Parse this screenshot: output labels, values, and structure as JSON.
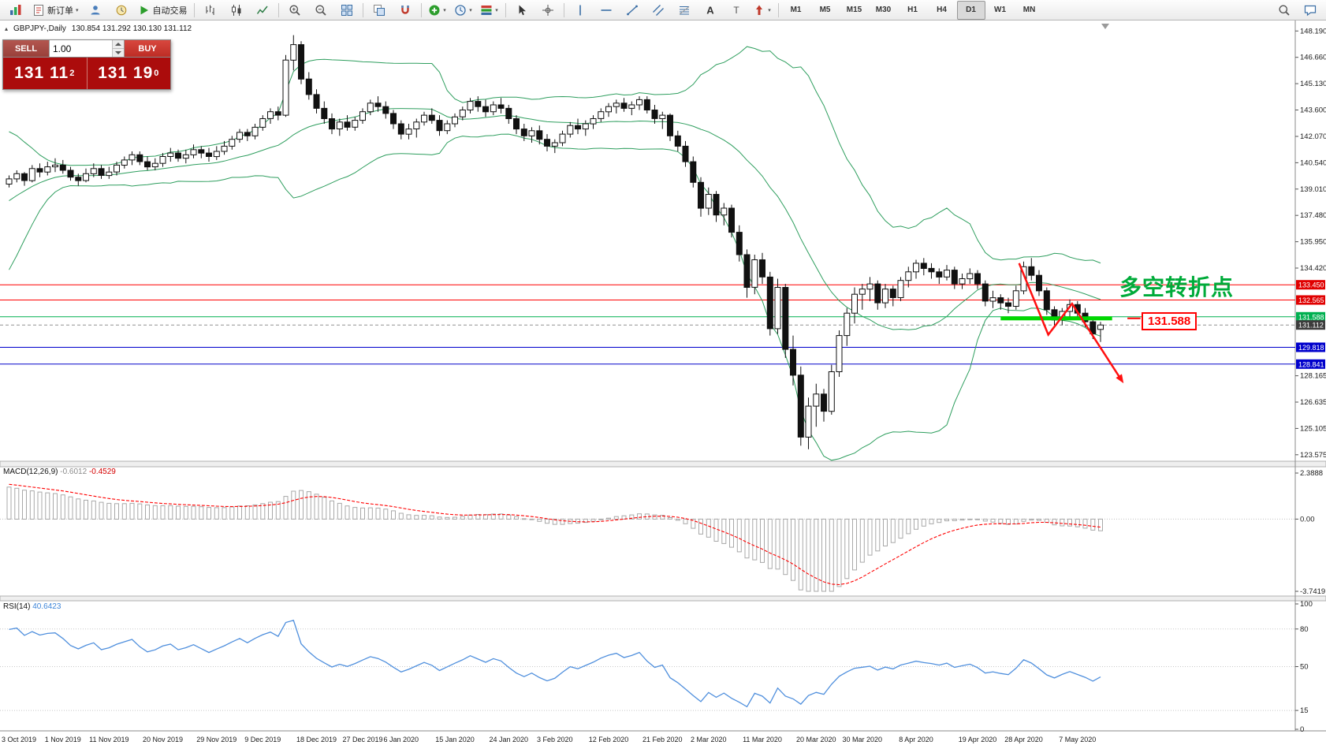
{
  "icons": {
    "caret": "▾",
    "collapse_arrow": "▴"
  },
  "toolbar": {
    "new_order_label": "新订单",
    "autotrade_label": "自动交易",
    "left_groups": [
      [
        {
          "name": "app",
          "icon": "app-icon"
        },
        {
          "name": "new-order",
          "icon": "new-order-icon",
          "label_key": "new_order_label",
          "caret": true
        },
        {
          "name": "profiles",
          "icon": "profiles-icon"
        },
        {
          "name": "market-watch",
          "icon": "market-watch-icon"
        },
        {
          "name": "autotrade",
          "icon": "autotrade-icon",
          "label_key": "autotrade_label"
        }
      ],
      [
        {
          "name": "chart-bars",
          "icon": "chart-bars-icon"
        },
        {
          "name": "chart-candles",
          "icon": "chart-candles-icon"
        },
        {
          "name": "chart-line",
          "icon": "chart-line-icon"
        }
      ],
      [
        {
          "name": "zoom-in",
          "icon": "zoom-in-icon"
        },
        {
          "name": "zoom-out",
          "icon": "zoom-out-icon"
        },
        {
          "name": "tile-windows",
          "icon": "tile-windows-icon"
        }
      ],
      [
        {
          "name": "arrange-windows",
          "icon": "arrange-icon"
        },
        {
          "name": "snap",
          "icon": "snap-icon"
        }
      ],
      [
        {
          "name": "indicators",
          "icon": "indicators-icon",
          "caret": true
        },
        {
          "name": "periods",
          "icon": "periods-icon",
          "caret": true
        },
        {
          "name": "templates",
          "icon": "templates-icon",
          "caret": true
        }
      ],
      [
        {
          "name": "cursor",
          "icon": "cursor-icon"
        },
        {
          "name": "crosshair",
          "icon": "crosshair-icon"
        }
      ],
      [
        {
          "name": "vline",
          "icon": "vline-icon"
        },
        {
          "name": "hline",
          "icon": "hline-icon"
        },
        {
          "name": "trendline",
          "icon": "trendline-icon"
        },
        {
          "name": "channel",
          "icon": "channel-icon"
        },
        {
          "name": "fibonacci",
          "icon": "fibo-icon"
        },
        {
          "name": "text",
          "icon": "text-icon"
        },
        {
          "name": "text-label",
          "icon": "label-icon"
        },
        {
          "name": "arrows",
          "icon": "arrows-icon",
          "caret": true
        }
      ]
    ],
    "timeframes": [
      "M1",
      "M5",
      "M15",
      "M30",
      "H1",
      "H4",
      "D1",
      "W1",
      "MN"
    ],
    "active_timeframe": "D1",
    "right_icons": [
      {
        "name": "search",
        "icon": "search-icon"
      },
      {
        "name": "chat",
        "icon": "chat-icon"
      }
    ]
  },
  "symbol_info": {
    "symbol": "GBPJPY-,Daily",
    "values": "130.854 131.292 130.130 131.112"
  },
  "trade_panel": {
    "sell_label": "SELL",
    "buy_label": "BUY",
    "volume": "1.00",
    "sell_price": "131 11",
    "sell_sup": "2",
    "buy_price": "131 19",
    "buy_sup": "0"
  },
  "indicator_labels": {
    "macd_name": "MACD(12,26,9)",
    "macd_main": "-0.6012",
    "macd_signal": "-0.4529",
    "rsi_name": "RSI(14)",
    "rsi_value": "40.6423"
  },
  "annotations": {
    "turning_point": "多空转折点",
    "support_label": "131.588"
  },
  "chart_data": {
    "type": "candlestick",
    "title": "GBPJPY-,Daily",
    "price_range": [
      123.2,
      148.8
    ],
    "price_axis_ticks": [
      "148.190",
      "146.660",
      "145.130",
      "143.600",
      "142.070",
      "140.540",
      "139.010",
      "137.480",
      "135.950",
      "134.420",
      "128.165",
      "126.635",
      "125.105",
      "123.575"
    ],
    "dates": [
      [
        "3 Oct 2019",
        0
      ],
      [
        "1 Nov 2019",
        7
      ],
      [
        "11 Nov 2019",
        13
      ],
      [
        "20 Nov 2019",
        20
      ],
      [
        "29 Nov 2019",
        27
      ],
      [
        "9 Dec 2019",
        33
      ],
      [
        "18 Dec 2019",
        40
      ],
      [
        "27 Dec 2019",
        46
      ],
      [
        "6 Jan 2020",
        51
      ],
      [
        "15 Jan 2020",
        58
      ],
      [
        "24 Jan 2020",
        65
      ],
      [
        "3 Feb 2020",
        71
      ],
      [
        "12 Feb 2020",
        78
      ],
      [
        "21 Feb 2020",
        85
      ],
      [
        "2 Mar 2020",
        91
      ],
      [
        "11 Mar 2020",
        98
      ],
      [
        "20 Mar 2020",
        105
      ],
      [
        "30 Mar 2020",
        111
      ],
      [
        "8 Apr 2020",
        118
      ],
      [
        "19 Apr 2020",
        126
      ],
      [
        "28 Apr 2020",
        132
      ],
      [
        "7 May 2020",
        139
      ]
    ],
    "warmup_closes": [
      131.5,
      131.8,
      132.2,
      132.0,
      132.5,
      133.2,
      134.0,
      133.8,
      134.2,
      134.9,
      135.8,
      136.8,
      137.7,
      138.5,
      139.1,
      139.6,
      139.9,
      140.1,
      139.7,
      139.4,
      139.6,
      139.4,
      139.7,
      139.5,
      139.8,
      139.5
    ],
    "candles": [
      [
        139.3,
        139.8,
        139.1,
        139.6
      ],
      [
        139.6,
        140.1,
        139.4,
        139.9
      ],
      [
        139.9,
        140.0,
        139.2,
        139.5
      ],
      [
        139.5,
        140.4,
        139.4,
        140.2
      ],
      [
        140.2,
        140.5,
        139.7,
        140.0
      ],
      [
        140.0,
        140.6,
        139.8,
        140.3
      ],
      [
        140.3,
        140.8,
        140.0,
        140.4
      ],
      [
        140.4,
        140.7,
        139.9,
        140.1
      ],
      [
        140.1,
        140.3,
        139.5,
        139.7
      ],
      [
        139.7,
        139.9,
        139.2,
        139.5
      ],
      [
        139.5,
        140.2,
        139.4,
        139.9
      ],
      [
        139.9,
        140.5,
        139.7,
        140.2
      ],
      [
        140.2,
        140.4,
        139.6,
        139.8
      ],
      [
        139.8,
        140.3,
        139.6,
        140.0
      ],
      [
        140.0,
        140.6,
        139.8,
        140.4
      ],
      [
        140.4,
        140.9,
        140.2,
        140.7
      ],
      [
        140.7,
        141.2,
        140.4,
        141.0
      ],
      [
        141.0,
        141.2,
        140.4,
        140.6
      ],
      [
        140.6,
        140.9,
        140.1,
        140.3
      ],
      [
        140.3,
        140.8,
        140.1,
        140.5
      ],
      [
        140.5,
        141.1,
        140.3,
        140.9
      ],
      [
        140.9,
        141.4,
        140.6,
        141.1
      ],
      [
        141.1,
        141.3,
        140.6,
        140.8
      ],
      [
        140.8,
        141.3,
        140.5,
        141.0
      ],
      [
        141.0,
        141.6,
        140.8,
        141.3
      ],
      [
        141.3,
        141.5,
        140.8,
        141.1
      ],
      [
        141.1,
        141.4,
        140.6,
        140.9
      ],
      [
        140.9,
        141.5,
        140.7,
        141.2
      ],
      [
        141.2,
        141.8,
        141.0,
        141.5
      ],
      [
        141.5,
        142.1,
        141.3,
        141.9
      ],
      [
        141.9,
        142.5,
        141.7,
        142.3
      ],
      [
        142.3,
        142.5,
        141.8,
        142.1
      ],
      [
        142.1,
        142.8,
        141.9,
        142.6
      ],
      [
        142.6,
        143.3,
        142.4,
        143.1
      ],
      [
        143.1,
        143.7,
        142.8,
        143.5
      ],
      [
        143.5,
        143.8,
        143.0,
        143.3
      ],
      [
        143.3,
        146.8,
        143.2,
        146.5
      ],
      [
        146.5,
        147.95,
        145.9,
        147.4
      ],
      [
        147.4,
        147.6,
        145.1,
        145.4
      ],
      [
        145.4,
        145.8,
        144.2,
        144.5
      ],
      [
        144.5,
        144.8,
        143.4,
        143.7
      ],
      [
        143.7,
        144.1,
        142.8,
        143.1
      ],
      [
        143.1,
        143.4,
        142.2,
        142.5
      ],
      [
        142.5,
        143.1,
        142.1,
        142.9
      ],
      [
        142.9,
        143.3,
        142.4,
        142.6
      ],
      [
        142.6,
        143.2,
        142.4,
        143.0
      ],
      [
        143.0,
        143.7,
        142.8,
        143.5
      ],
      [
        143.5,
        144.2,
        143.3,
        144.0
      ],
      [
        144.0,
        144.4,
        143.5,
        143.8
      ],
      [
        143.8,
        144.1,
        143.1,
        143.4
      ],
      [
        143.4,
        143.6,
        142.5,
        142.8
      ],
      [
        142.8,
        143.0,
        141.9,
        142.2
      ],
      [
        142.2,
        142.8,
        141.9,
        142.5
      ],
      [
        142.5,
        143.1,
        142.0,
        142.9
      ],
      [
        142.9,
        143.5,
        142.7,
        143.3
      ],
      [
        143.3,
        143.7,
        142.8,
        143.0
      ],
      [
        143.0,
        143.3,
        142.1,
        142.4
      ],
      [
        142.4,
        143.0,
        142.2,
        142.8
      ],
      [
        142.8,
        143.4,
        142.6,
        143.2
      ],
      [
        143.2,
        143.8,
        143.0,
        143.6
      ],
      [
        143.6,
        144.3,
        143.4,
        144.1
      ],
      [
        144.1,
        144.4,
        143.5,
        143.8
      ],
      [
        143.8,
        144.2,
        143.2,
        143.5
      ],
      [
        143.5,
        144.1,
        143.3,
        143.9
      ],
      [
        143.9,
        144.3,
        143.4,
        143.7
      ],
      [
        143.7,
        143.9,
        142.8,
        143.1
      ],
      [
        143.1,
        143.3,
        142.2,
        142.5
      ],
      [
        142.5,
        142.8,
        141.8,
        142.1
      ],
      [
        142.1,
        142.6,
        141.7,
        142.4
      ],
      [
        142.4,
        142.7,
        141.6,
        141.9
      ],
      [
        141.9,
        142.2,
        141.2,
        141.5
      ],
      [
        141.5,
        141.9,
        141.1,
        141.7
      ],
      [
        141.7,
        142.4,
        141.5,
        142.2
      ],
      [
        142.2,
        142.9,
        142.0,
        142.7
      ],
      [
        142.7,
        143.1,
        142.2,
        142.5
      ],
      [
        142.5,
        143.0,
        142.1,
        142.8
      ],
      [
        142.8,
        143.3,
        142.5,
        143.1
      ],
      [
        143.1,
        143.7,
        142.9,
        143.5
      ],
      [
        143.5,
        144.0,
        143.2,
        143.8
      ],
      [
        143.8,
        144.2,
        143.4,
        144.0
      ],
      [
        144.0,
        144.3,
        143.5,
        143.7
      ],
      [
        143.7,
        144.1,
        143.3,
        143.9
      ],
      [
        143.9,
        144.4,
        143.6,
        144.2
      ],
      [
        144.2,
        144.4,
        143.4,
        143.6
      ],
      [
        143.6,
        143.9,
        142.8,
        143.1
      ],
      [
        143.1,
        143.5,
        142.5,
        143.3
      ],
      [
        143.3,
        143.4,
        141.8,
        142.1
      ],
      [
        142.1,
        142.4,
        141.2,
        141.5
      ],
      [
        141.5,
        141.8,
        140.3,
        140.6
      ],
      [
        140.6,
        140.9,
        139.1,
        139.4
      ],
      [
        139.4,
        139.7,
        137.4,
        137.9
      ],
      [
        137.9,
        139.1,
        137.5,
        138.7
      ],
      [
        138.7,
        138.9,
        137.1,
        137.5
      ],
      [
        137.5,
        138.2,
        136.9,
        137.9
      ],
      [
        137.9,
        138.1,
        136.2,
        136.5
      ],
      [
        136.5,
        136.9,
        134.8,
        135.2
      ],
      [
        135.2,
        135.5,
        132.7,
        133.3
      ],
      [
        133.3,
        135.2,
        132.9,
        134.9
      ],
      [
        134.9,
        135.3,
        133.5,
        133.9
      ],
      [
        133.9,
        134.2,
        130.5,
        130.9
      ],
      [
        130.9,
        133.8,
        130.6,
        133.3
      ],
      [
        133.3,
        133.5,
        129.2,
        129.7
      ],
      [
        129.7,
        130.5,
        127.6,
        128.2
      ],
      [
        128.2,
        128.7,
        124.1,
        124.6
      ],
      [
        124.6,
        126.9,
        123.9,
        126.4
      ],
      [
        126.4,
        127.7,
        125.2,
        127.1
      ],
      [
        127.1,
        127.4,
        125.5,
        126.1
      ],
      [
        126.1,
        128.8,
        125.9,
        128.4
      ],
      [
        128.4,
        130.8,
        128.1,
        130.5
      ],
      [
        130.5,
        132.1,
        129.9,
        131.8
      ],
      [
        131.8,
        133.3,
        131.2,
        132.9
      ],
      [
        132.9,
        133.5,
        132.0,
        133.2
      ],
      [
        133.2,
        133.9,
        132.5,
        133.5
      ],
      [
        133.5,
        133.7,
        132.0,
        132.4
      ],
      [
        132.4,
        133.5,
        132.1,
        133.2
      ],
      [
        133.2,
        133.4,
        132.2,
        132.7
      ],
      [
        132.7,
        133.9,
        132.5,
        133.7
      ],
      [
        133.7,
        134.5,
        133.3,
        134.2
      ],
      [
        134.2,
        134.9,
        133.8,
        134.7
      ],
      [
        134.7,
        135.0,
        134.0,
        134.4
      ],
      [
        134.4,
        134.7,
        133.8,
        134.2
      ],
      [
        134.2,
        134.4,
        133.5,
        133.9
      ],
      [
        133.9,
        134.6,
        133.7,
        134.3
      ],
      [
        134.3,
        134.5,
        133.2,
        133.5
      ],
      [
        133.5,
        134.1,
        133.2,
        133.8
      ],
      [
        133.8,
        134.4,
        133.5,
        134.1
      ],
      [
        134.1,
        134.3,
        133.2,
        133.5
      ],
      [
        133.5,
        133.7,
        132.2,
        132.5
      ],
      [
        132.5,
        133.1,
        132.1,
        132.7
      ],
      [
        132.7,
        132.9,
        132.0,
        132.4
      ],
      [
        132.4,
        132.7,
        131.8,
        132.2
      ],
      [
        132.2,
        133.4,
        132.0,
        133.1
      ],
      [
        133.1,
        134.8,
        132.9,
        134.5
      ],
      [
        134.5,
        135.0,
        133.7,
        134.0
      ],
      [
        134.0,
        134.3,
        132.8,
        133.1
      ],
      [
        133.1,
        133.3,
        131.7,
        132.0
      ],
      [
        132.0,
        132.2,
        131.1,
        131.4
      ],
      [
        131.4,
        132.1,
        131.1,
        131.9
      ],
      [
        131.9,
        132.6,
        131.6,
        132.3
      ],
      [
        132.3,
        132.5,
        131.5,
        131.8
      ],
      [
        131.8,
        132.1,
        131.0,
        131.3
      ],
      [
        131.3,
        131.5,
        130.3,
        130.6
      ],
      [
        130.854,
        131.292,
        130.13,
        131.112
      ]
    ],
    "indicators": {
      "bollinger": {
        "period": 20,
        "deviation": 2,
        "color": "#2e9e5e"
      },
      "macd": {
        "fast": 12,
        "slow": 26,
        "signal": 9,
        "main_value": -0.6012,
        "signal_value": -0.4529,
        "axis": [
          {
            "text": "2.3888",
            "value": 2.3888
          },
          {
            "text": "0.00",
            "value": 0
          },
          {
            "text": "-3.7419",
            "value": -3.7419
          }
        ]
      },
      "rsi": {
        "period": 14,
        "value": 40.6423,
        "levels": [
          80,
          50,
          15
        ],
        "axis": [
          {
            "text": "100",
            "value": 100
          },
          {
            "text": "80",
            "value": 80
          },
          {
            "text": "50",
            "value": 50
          },
          {
            "text": "15",
            "value": 15
          },
          {
            "text": "0",
            "value": 0
          }
        ]
      }
    },
    "hlines": [
      {
        "price": 133.45,
        "color": "#ff0000",
        "tag": "133.450",
        "tag_color": "#e00000"
      },
      {
        "price": 132.565,
        "color": "#ff0000",
        "tag": "132.565",
        "tag_color": "#e00000"
      },
      {
        "price": 131.588,
        "color": "#00b050",
        "tag": "131.588",
        "tag_color": "#00b050"
      },
      {
        "price": 131.112,
        "color": "#909090",
        "style": "dashed",
        "tag": "131.112",
        "tag_color": "#3c3c3c"
      },
      {
        "price": 129.818,
        "color": "#0000cc",
        "tag": "129.818",
        "tag_color": "#0000cc"
      },
      {
        "price": 128.841,
        "color": "#0000cc",
        "tag": "128.841",
        "tag_color": "#0000cc"
      }
    ],
    "drawn_annotations": {
      "support_segment": {
        "price": 131.5,
        "from_index": 129,
        "to_index": 143.5,
        "color": "#00d800",
        "thickness": 5
      },
      "arrow_points": [
        [
          131.4,
          134.7
        ],
        [
          135.2,
          130.55
        ],
        [
          138.3,
          132.35
        ],
        [
          144.6,
          128.0
        ]
      ],
      "arrow_color": "#ff1010",
      "label_leader": {
        "price": 131.5,
        "from_index": 145.5,
        "to_index": 147.2,
        "color": "#ff0000"
      }
    }
  }
}
